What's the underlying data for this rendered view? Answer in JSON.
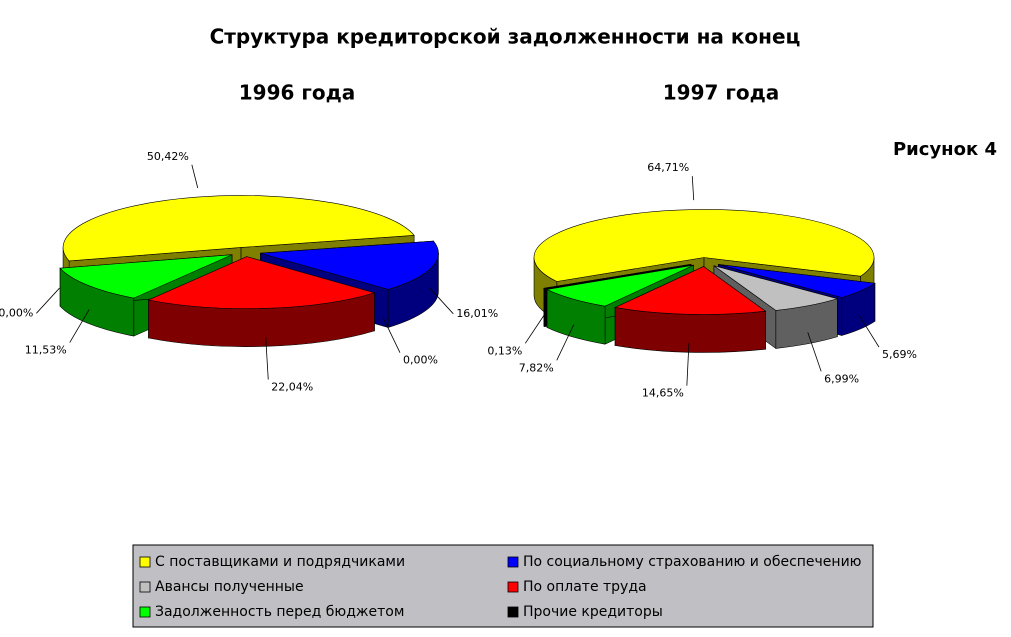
{
  "chart_data": {
    "type": "pie",
    "title": "Структура кредиторской задолженности на конец",
    "annotation": "Рисунок 4",
    "categories": [
      "С поставщиками и подрядчиками",
      "По социальному страхованию и обеспечению",
      "Авансы полученные",
      "По оплате труда",
      "Задолженность перед бюджетом",
      "Прочие кредиторы"
    ],
    "colors": [
      "#ffff00",
      "#0000ff",
      "#c0c0c0",
      "#ff0000",
      "#00ff00",
      "#000000"
    ],
    "series": [
      {
        "name": "1996 года",
        "values": [
          50.42,
          16.01,
          0.0,
          22.04,
          11.53,
          0.0
        ],
        "value_labels": [
          "50,42%",
          "16,01%",
          "0,00%",
          "22,04%",
          "11,53%",
          "0,00%"
        ]
      },
      {
        "name": "1997 года",
        "values": [
          64.71,
          5.69,
          6.99,
          14.65,
          7.82,
          0.13
        ],
        "value_labels": [
          "64,71%",
          "5,69%",
          "6,99%",
          "14,65%",
          "7,82%",
          "0,13%"
        ]
      }
    ],
    "legend": true
  }
}
